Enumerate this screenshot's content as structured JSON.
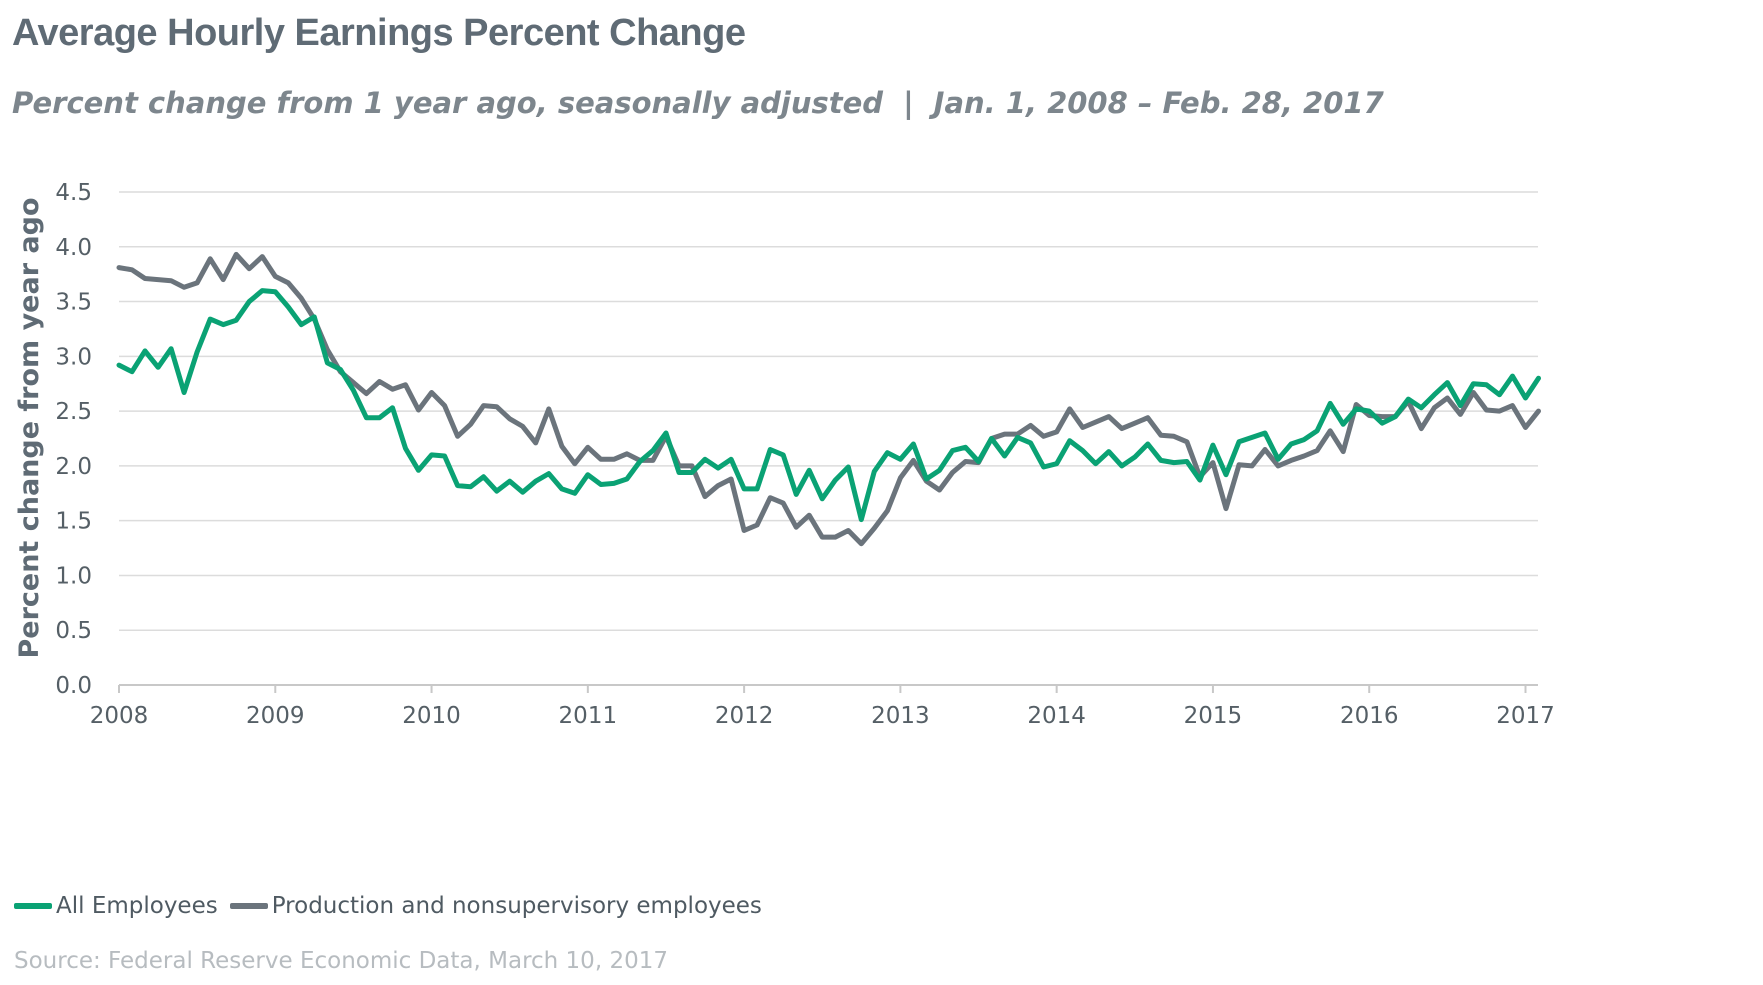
{
  "title": "Average Hourly Earnings Percent Change",
  "subtitle": {
    "description": "Percent change from 1 year ago, seasonally adjusted",
    "separator": "|",
    "date_range": "Jan. 1, 2008 – Feb. 28, 2017"
  },
  "source": "Source: Federal Reserve Economic Data, March 10, 2017",
  "colors": {
    "all_employees": "#0aa274",
    "production": "#6b747c",
    "grid": "#dcdcdc",
    "axis_text": "#555f66"
  },
  "chart_data": {
    "type": "line",
    "title": "Average Hourly Earnings Percent Change",
    "xlabel": "",
    "ylabel": "Percent change from year ago",
    "xlim": [
      2008.0,
      2017.08
    ],
    "ylim": [
      0,
      4.5
    ],
    "yticks": [
      "0.0",
      "0.5",
      "1.0",
      "1.5",
      "2.0",
      "2.5",
      "3.0",
      "3.5",
      "4.0",
      "4.5"
    ],
    "xticks": [
      "2008",
      "2009",
      "2010",
      "2011",
      "2012",
      "2013",
      "2014",
      "2015",
      "2016",
      "2017"
    ],
    "grid": true,
    "legend_position": "bottom-left",
    "x_start": "2008-01",
    "x_step": "monthly",
    "series": [
      {
        "name": "All Employees",
        "color": "#0aa274",
        "values": [
          2.92,
          2.86,
          3.05,
          2.9,
          3.07,
          2.67,
          3.04,
          3.34,
          3.29,
          3.33,
          3.5,
          3.6,
          3.59,
          3.45,
          3.29,
          3.36,
          2.94,
          2.88,
          2.69,
          2.44,
          2.44,
          2.53,
          2.16,
          1.96,
          2.1,
          2.09,
          1.82,
          1.81,
          1.9,
          1.77,
          1.86,
          1.76,
          1.86,
          1.93,
          1.79,
          1.75,
          1.92,
          1.83,
          1.84,
          1.88,
          2.04,
          2.14,
          2.3,
          1.94,
          1.94,
          2.06,
          1.98,
          2.06,
          1.79,
          1.79,
          2.15,
          2.1,
          1.74,
          1.96,
          1.7,
          1.87,
          1.99,
          1.51,
          1.95,
          2.12,
          2.06,
          2.2,
          1.88,
          1.96,
          2.14,
          2.17,
          2.04,
          2.25,
          2.09,
          2.26,
          2.21,
          1.99,
          2.02,
          2.23,
          2.14,
          2.02,
          2.13,
          2.0,
          2.08,
          2.2,
          2.05,
          2.03,
          2.04,
          1.87,
          2.19,
          1.92,
          2.22,
          2.26,
          2.3,
          2.06,
          2.2,
          2.24,
          2.32,
          2.57,
          2.38,
          2.52,
          2.5,
          2.39,
          2.45,
          2.61,
          2.53,
          2.65,
          2.76,
          2.55,
          2.75,
          2.74,
          2.65,
          2.82,
          2.62,
          2.8
        ]
      },
      {
        "name": "Production and nonsupervisory employees",
        "color": "#6b747c",
        "values": [
          3.81,
          3.79,
          3.71,
          3.7,
          3.69,
          3.63,
          3.67,
          3.89,
          3.7,
          3.93,
          3.8,
          3.91,
          3.73,
          3.67,
          3.53,
          3.34,
          3.06,
          2.86,
          2.76,
          2.66,
          2.77,
          2.7,
          2.74,
          2.51,
          2.67,
          2.55,
          2.27,
          2.38,
          2.55,
          2.54,
          2.43,
          2.36,
          2.21,
          2.52,
          2.18,
          2.02,
          2.17,
          2.06,
          2.06,
          2.11,
          2.05,
          2.05,
          2.27,
          2.0,
          2.0,
          1.72,
          1.82,
          1.88,
          1.41,
          1.46,
          1.71,
          1.66,
          1.44,
          1.55,
          1.35,
          1.35,
          1.41,
          1.29,
          1.43,
          1.59,
          1.89,
          2.05,
          1.86,
          1.78,
          1.94,
          2.04,
          2.03,
          2.25,
          2.29,
          2.29,
          2.37,
          2.27,
          2.31,
          2.52,
          2.35,
          2.4,
          2.45,
          2.34,
          2.39,
          2.44,
          2.28,
          2.27,
          2.22,
          1.9,
          2.03,
          1.61,
          2.01,
          2.0,
          2.15,
          2.0,
          2.05,
          2.09,
          2.14,
          2.32,
          2.13,
          2.56,
          2.46,
          2.45,
          2.45,
          2.59,
          2.34,
          2.53,
          2.62,
          2.47,
          2.67,
          2.51,
          2.5,
          2.55,
          2.35,
          2.5
        ]
      }
    ]
  }
}
